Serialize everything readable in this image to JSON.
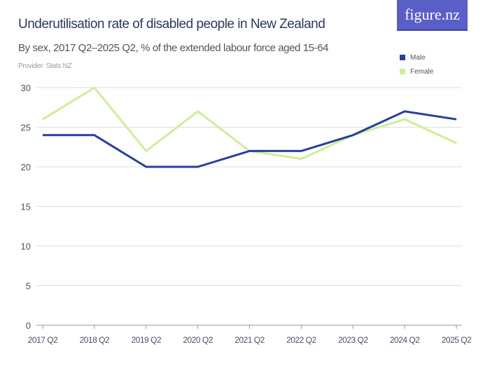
{
  "logo": "figure.nz",
  "chart_data": {
    "type": "line",
    "title": "Underutilisation rate of disabled people in New Zealand",
    "subtitle": "By sex, 2017 Q2–2025 Q2, % of the extended labour force aged 15-64",
    "provider": "Provider: Stats NZ",
    "categories": [
      "2017 Q2",
      "2018 Q2",
      "2019 Q2",
      "2020 Q2",
      "2021 Q2",
      "2022 Q2",
      "2023 Q2",
      "2024 Q2",
      "2025 Q2"
    ],
    "series": [
      {
        "name": "Male",
        "color": "#27409b",
        "values": [
          24,
          24,
          20,
          20,
          22,
          22,
          24,
          27,
          26
        ]
      },
      {
        "name": "Female",
        "color": "#cdef96",
        "values": [
          26,
          30,
          22,
          27,
          22,
          21,
          24,
          26,
          23
        ]
      }
    ],
    "yticks": [
      0,
      5,
      10,
      15,
      20,
      25,
      30
    ],
    "ylim": [
      0,
      30
    ],
    "grid": true,
    "legend": "top-right"
  }
}
